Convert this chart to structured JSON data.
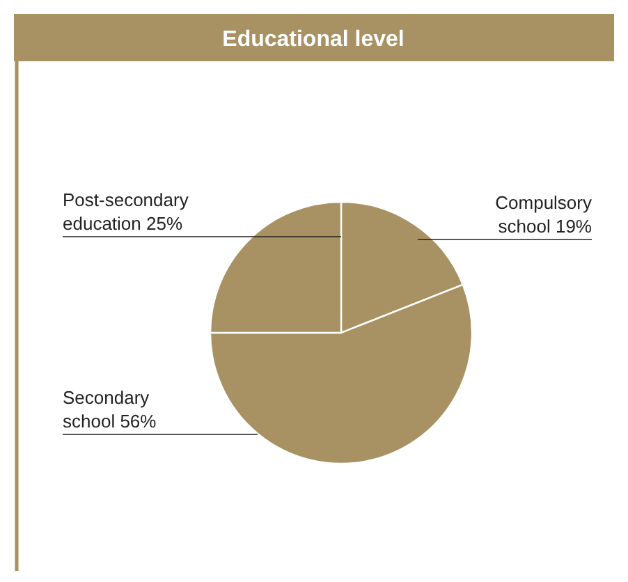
{
  "chart_data": {
    "type": "pie",
    "title": "Educational level",
    "categories": [
      "Compulsory school",
      "Secondary school",
      "Post-secondary education"
    ],
    "values": [
      19,
      56,
      25
    ],
    "value_labels": [
      "19%",
      "56%",
      "25%"
    ],
    "colors": [
      "#a89162",
      "#a89162",
      "#a89162"
    ]
  }
}
